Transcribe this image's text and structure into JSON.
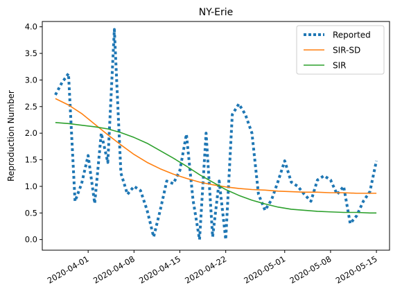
{
  "chart_data": {
    "type": "line",
    "title": "NY-Erie",
    "xlabel": "",
    "ylabel": "Reproduction Number",
    "x_axis_type": "date",
    "xlim": [
      "2020-03-25",
      "2020-05-17"
    ],
    "ylim": [
      -0.2,
      4.1
    ],
    "x_ticks": [
      "2020-04-01",
      "2020-04-08",
      "2020-04-15",
      "2020-04-22",
      "2020-05-01",
      "2020-05-08",
      "2020-05-15"
    ],
    "y_ticks": [
      0.0,
      0.5,
      1.0,
      1.5,
      2.0,
      2.5,
      3.0,
      3.5,
      4.0
    ],
    "y_tick_labels": [
      "0.0",
      "0.5",
      "1.0",
      "1.5",
      "2.0",
      "2.5",
      "3.0",
      "3.5",
      "4.0"
    ],
    "grid": false,
    "legend_position": "top-right",
    "series": [
      {
        "name": "Reported",
        "color": "#1f77b4",
        "style": "dotted",
        "x": [
          "2020-03-27",
          "2020-03-28",
          "2020-03-29",
          "2020-03-30",
          "2020-03-31",
          "2020-04-01",
          "2020-04-02",
          "2020-04-03",
          "2020-04-04",
          "2020-04-05",
          "2020-04-06",
          "2020-04-07",
          "2020-04-08",
          "2020-04-09",
          "2020-04-10",
          "2020-04-11",
          "2020-04-12",
          "2020-04-13",
          "2020-04-14",
          "2020-04-15",
          "2020-04-16",
          "2020-04-17",
          "2020-04-18",
          "2020-04-19",
          "2020-04-20",
          "2020-04-21",
          "2020-04-22",
          "2020-04-23",
          "2020-04-24",
          "2020-04-25",
          "2020-04-26",
          "2020-04-27",
          "2020-04-28",
          "2020-04-29",
          "2020-04-30",
          "2020-05-01",
          "2020-05-02",
          "2020-05-03",
          "2020-05-04",
          "2020-05-05",
          "2020-05-06",
          "2020-05-07",
          "2020-05-08",
          "2020-05-09",
          "2020-05-10",
          "2020-05-11",
          "2020-05-12",
          "2020-05-13",
          "2020-05-14",
          "2020-05-15"
        ],
        "values": [
          2.72,
          2.95,
          3.12,
          0.72,
          1.05,
          1.58,
          0.68,
          2.0,
          1.45,
          3.95,
          1.25,
          0.85,
          1.0,
          0.92,
          0.55,
          0.05,
          0.55,
          1.1,
          1.05,
          1.3,
          1.98,
          0.75,
          0.0,
          2.0,
          0.05,
          1.1,
          0.0,
          2.35,
          2.55,
          2.35,
          2.0,
          0.85,
          0.55,
          0.75,
          1.1,
          1.48,
          1.08,
          1.0,
          0.85,
          0.72,
          1.12,
          1.2,
          1.12,
          0.85,
          1.0,
          0.3,
          0.45,
          0.72,
          0.9,
          1.48
        ]
      },
      {
        "name": "SIR-SD",
        "color": "#ff7f0e",
        "style": "solid",
        "x": [
          "2020-03-27",
          "2020-03-29",
          "2020-03-31",
          "2020-04-02",
          "2020-04-04",
          "2020-04-06",
          "2020-04-08",
          "2020-04-10",
          "2020-04-12",
          "2020-04-14",
          "2020-04-16",
          "2020-04-18",
          "2020-04-20",
          "2020-04-22",
          "2020-04-24",
          "2020-04-26",
          "2020-04-28",
          "2020-04-30",
          "2020-05-02",
          "2020-05-04",
          "2020-05-06",
          "2020-05-08",
          "2020-05-10",
          "2020-05-12",
          "2020-05-14",
          "2020-05-15"
        ],
        "values": [
          2.65,
          2.53,
          2.37,
          2.17,
          1.97,
          1.78,
          1.6,
          1.45,
          1.33,
          1.23,
          1.15,
          1.08,
          1.03,
          0.99,
          0.96,
          0.94,
          0.93,
          0.91,
          0.9,
          0.89,
          0.89,
          0.88,
          0.88,
          0.87,
          0.87,
          0.87
        ]
      },
      {
        "name": "SIR",
        "color": "#2ca02c",
        "style": "solid",
        "x": [
          "2020-03-27",
          "2020-03-29",
          "2020-03-31",
          "2020-04-02",
          "2020-04-04",
          "2020-04-06",
          "2020-04-08",
          "2020-04-10",
          "2020-04-12",
          "2020-04-14",
          "2020-04-16",
          "2020-04-18",
          "2020-04-20",
          "2020-04-22",
          "2020-04-24",
          "2020-04-26",
          "2020-04-28",
          "2020-04-30",
          "2020-05-02",
          "2020-05-04",
          "2020-05-06",
          "2020-05-08",
          "2020-05-10",
          "2020-05-12",
          "2020-05-14",
          "2020-05-15"
        ],
        "values": [
          2.2,
          2.18,
          2.15,
          2.12,
          2.08,
          2.01,
          1.92,
          1.81,
          1.67,
          1.53,
          1.38,
          1.22,
          1.08,
          0.94,
          0.83,
          0.74,
          0.67,
          0.61,
          0.57,
          0.55,
          0.53,
          0.52,
          0.51,
          0.51,
          0.5,
          0.5
        ]
      }
    ]
  }
}
